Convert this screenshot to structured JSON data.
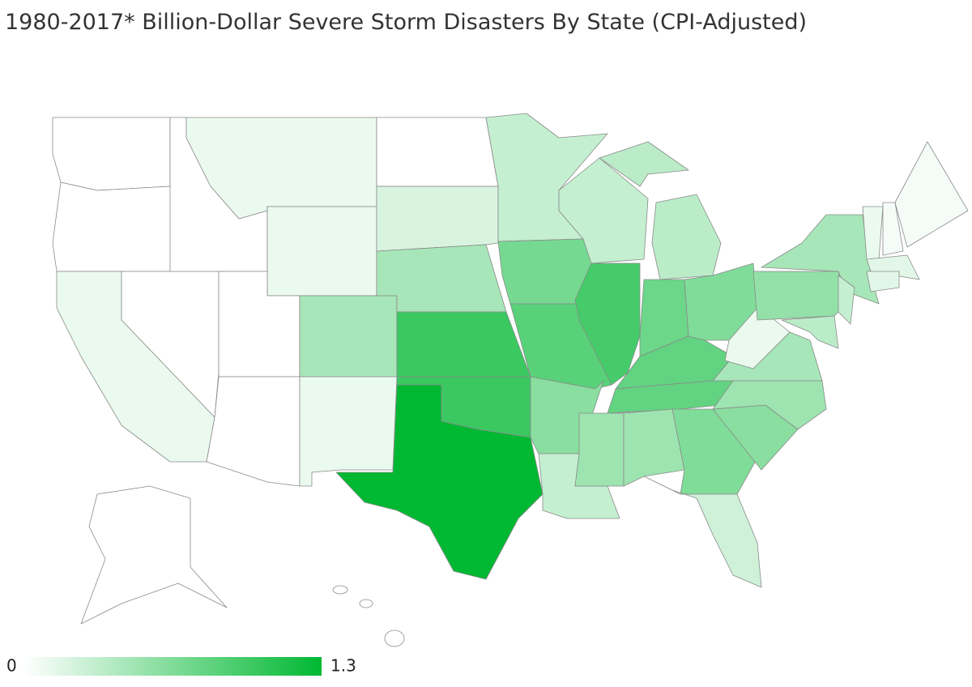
{
  "chart_data": {
    "type": "choropleth",
    "title": "1980-2017* Billion-Dollar Severe Storm Disasters By State (CPI-Adjusted)",
    "values": [
      0,
      0,
      0.1,
      0,
      0,
      0.1,
      0.1,
      0,
      0.45,
      0,
      0.1,
      0,
      0.2,
      0.45,
      1.0,
      1.0,
      1.3,
      0.3,
      0.7,
      0.85,
      0.6,
      0.3,
      0.3,
      0.95,
      0.35,
      0.75,
      0.65,
      0.8,
      0.8,
      0.5,
      0.5,
      0.65,
      0.25,
      0.6,
      0.5,
      0.45,
      0.1,
      0.55,
      0.45,
      0.35,
      0.3,
      0.1,
      0.05,
      0.05,
      0.15,
      0.15,
      0,
      0
    ],
    "zlim": [
      0,
      1.3
    ],
    "colors": [
      "#ffffff",
      "#00b832"
    ]
  }
}
